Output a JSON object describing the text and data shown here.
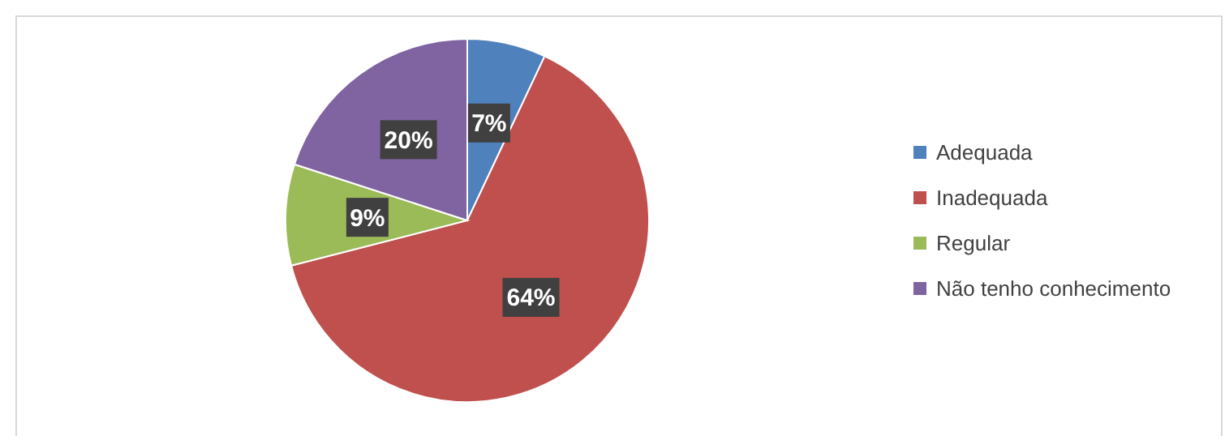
{
  "chart_data": {
    "type": "pie",
    "categories": [
      "Adequada",
      "Inadequada",
      "Regular",
      "Não tenho conhecimento"
    ],
    "values": [
      7,
      64,
      9,
      20
    ],
    "colors": [
      "#4f81bd",
      "#c0504d",
      "#9bbb59",
      "#8064a2"
    ],
    "value_labels": [
      "7%",
      "64%",
      "9%",
      "20%"
    ],
    "legend": "right"
  }
}
